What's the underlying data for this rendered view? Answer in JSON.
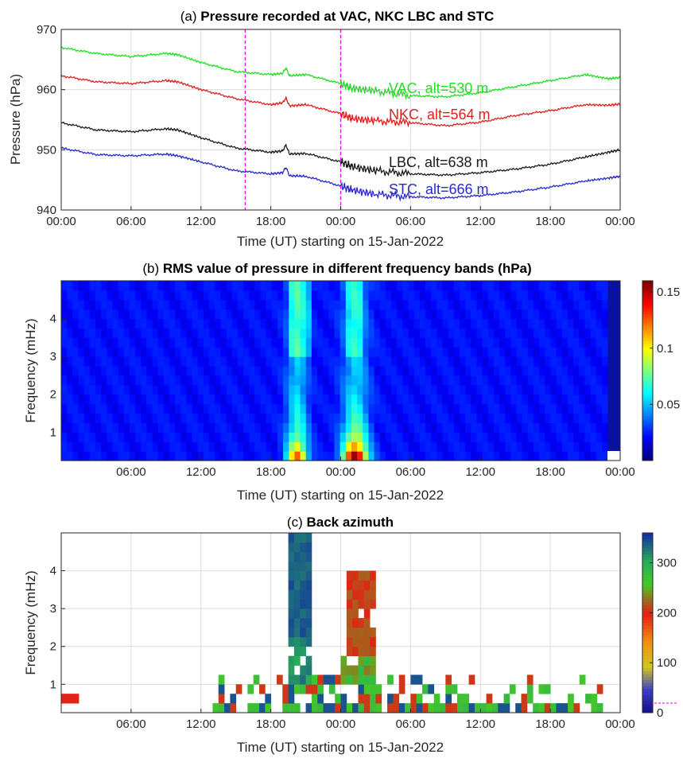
{
  "chart_data": [
    {
      "type": "line",
      "title_prefix": "(a)",
      "title": "Pressure recorded at VAC, NKC LBC and STC",
      "xlabel": "Time (UT) starting on 15-Jan-2022",
      "ylabel": "Pressure (hPa)",
      "xlim": [
        0,
        48
      ],
      "ylim": [
        940,
        970
      ],
      "x_ticks": [
        "00:00",
        "06:00",
        "12:00",
        "18:00",
        "00:00",
        "06:00",
        "12:00",
        "18:00",
        "00:00"
      ],
      "y_ticks": [
        "940",
        "950",
        "960",
        "970"
      ],
      "vlines_hours": [
        15.8,
        24.0
      ],
      "vline_color": "#e000e0",
      "grid": true,
      "series": [
        {
          "name": "VAC, alt=530 m",
          "color": "#22dd22",
          "x": [
            0,
            3,
            6,
            9,
            10,
            12,
            15,
            18,
            19,
            19.3,
            19.6,
            21,
            24,
            25,
            27,
            30,
            33,
            36,
            39,
            42,
            45,
            47,
            48
          ],
          "y": [
            967,
            966,
            965.5,
            966,
            965.8,
            964.5,
            963,
            962.5,
            962.7,
            963.6,
            962.3,
            962.5,
            961,
            960.2,
            959.8,
            959,
            958.8,
            959.5,
            960.5,
            961.5,
            962.5,
            961.8,
            962
          ]
        },
        {
          "name": "NKC, alt=564 m",
          "color": "#dd2020",
          "x": [
            0,
            3,
            6,
            9,
            10,
            12,
            15,
            18,
            19,
            19.3,
            19.6,
            21,
            24,
            25,
            27,
            30,
            33,
            36,
            39,
            42,
            45,
            47,
            48
          ],
          "y": [
            962.3,
            961.3,
            961,
            961.5,
            961.3,
            960,
            958.5,
            957.5,
            957.8,
            958.6,
            957.3,
            957.5,
            956,
            955.2,
            954.8,
            954.5,
            954,
            954.6,
            955.7,
            956.5,
            957.5,
            957.4,
            957.6
          ]
        },
        {
          "name": "LBC, alt=638 m",
          "color": "#1a1a1a",
          "x": [
            0,
            3,
            6,
            9,
            10,
            12,
            15,
            18,
            19,
            19.3,
            19.6,
            21,
            24,
            25,
            27,
            30,
            33,
            36,
            39,
            42,
            45,
            47,
            48
          ],
          "y": [
            954.5,
            953.3,
            953,
            953.5,
            953.3,
            952,
            950.3,
            949.6,
            949.8,
            950.8,
            949.3,
            949.4,
            948,
            947.2,
            946.5,
            946,
            945.8,
            946.2,
            946.8,
            947.6,
            948.8,
            949.6,
            950
          ]
        },
        {
          "name": "STC, alt=666 m",
          "color": "#2a2ac8",
          "x": [
            0,
            3,
            6,
            9,
            10,
            12,
            15,
            18,
            19,
            19.3,
            19.6,
            21,
            24,
            25,
            27,
            30,
            33,
            36,
            39,
            42,
            45,
            47,
            48
          ],
          "y": [
            950.3,
            949.2,
            949,
            949.3,
            949,
            948,
            946.5,
            946,
            946.2,
            947.1,
            945.7,
            945.6,
            944,
            943.3,
            942.6,
            942.2,
            942,
            942.4,
            943,
            943.8,
            944.8,
            945.3,
            945.6
          ]
        }
      ]
    },
    {
      "type": "heatmap",
      "title_prefix": "(b)",
      "title": "RMS value of pressure in different frequency bands (hPa)",
      "xlabel": "Time (UT) starting on 15-Jan-2022",
      "ylabel": "Frequency (mHz)",
      "xlim": [
        0,
        48
      ],
      "ylim": [
        0.25,
        5
      ],
      "x_ticks": [
        "06:00",
        "12:00",
        "18:00",
        "00:00",
        "06:00",
        "12:00",
        "18:00",
        "00:00"
      ],
      "y_ticks": [
        "1",
        "2",
        "3",
        "4"
      ],
      "colorbar_ticks": [
        "0.05",
        "0.1",
        "0.15"
      ],
      "clim": [
        0,
        0.16
      ],
      "colormap": "jet"
    },
    {
      "type": "heatmap",
      "title_prefix": "(c)",
      "title": "Back azimuth",
      "xlabel": "Time (UT) starting on 15-Jan-2022",
      "ylabel": "Frequency (mHz)",
      "xlim": [
        0,
        48
      ],
      "ylim": [
        0.25,
        5
      ],
      "x_ticks": [
        "06:00",
        "12:00",
        "18:00",
        "00:00",
        "06:00",
        "12:00",
        "18:00",
        "00:00"
      ],
      "y_ticks": [
        "1",
        "2",
        "3",
        "4"
      ],
      "colorbar_ticks": [
        "0",
        "100",
        "200",
        "300"
      ],
      "clim": [
        0,
        360
      ],
      "colormap": "parula-jet"
    }
  ]
}
